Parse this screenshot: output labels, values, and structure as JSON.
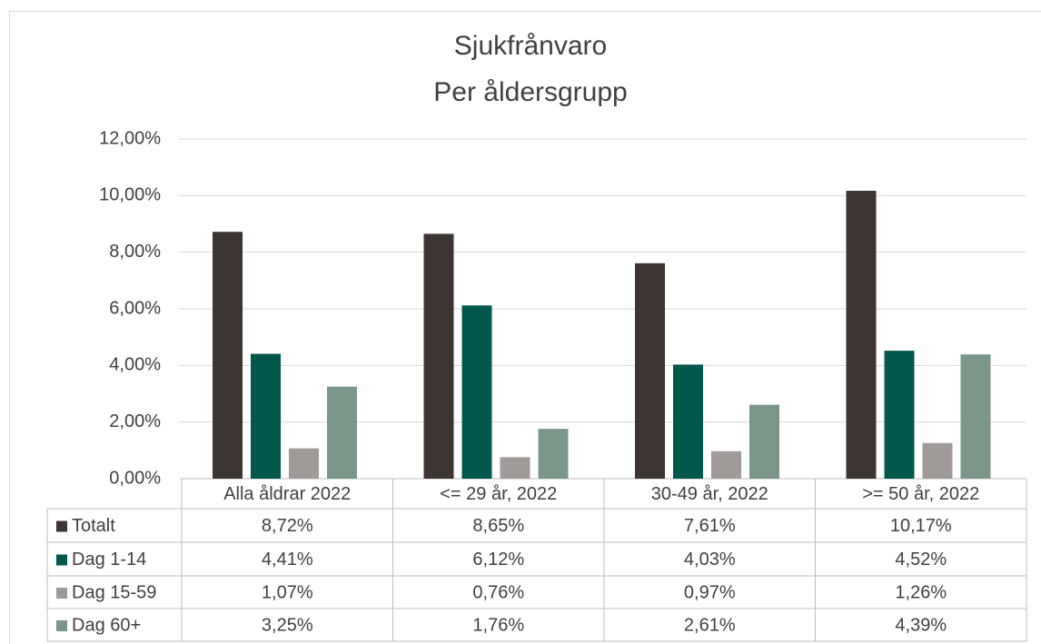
{
  "chart_data": {
    "type": "bar",
    "title": "Sjukfrånvaro",
    "subtitle": "Per åldersgrupp",
    "categories": [
      "Alla åldrar 2022",
      "<= 29 år, 2022",
      "30-49 år, 2022",
      ">= 50 år, 2022"
    ],
    "series": [
      {
        "name": "Totalt",
        "color": "#3d3531",
        "values": [
          8.72,
          8.65,
          7.61,
          10.17
        ],
        "value_labels": [
          "8,72%",
          "8,65%",
          "7,61%",
          "10,17%"
        ]
      },
      {
        "name": "Dag 1-14",
        "color": "#00574b",
        "values": [
          4.41,
          6.12,
          4.03,
          4.52
        ],
        "value_labels": [
          "4,41%",
          "6,12%",
          "4,03%",
          "4,52%"
        ]
      },
      {
        "name": "Dag 15-59",
        "color": "#a09a99",
        "values": [
          1.07,
          0.76,
          0.97,
          1.26
        ],
        "value_labels": [
          "1,07%",
          "0,76%",
          "0,97%",
          "1,26%"
        ]
      },
      {
        "name": "Dag 60+",
        "color": "#7a9689",
        "values": [
          3.25,
          1.76,
          2.61,
          4.39
        ],
        "value_labels": [
          "3,25%",
          "1,76%",
          "2,61%",
          "4,39%"
        ]
      }
    ],
    "ylim": [
      0,
      12
    ],
    "yticks": [
      {
        "value": 0,
        "label": "0,00%"
      },
      {
        "value": 2,
        "label": "2,00%"
      },
      {
        "value": 4,
        "label": "4,00%"
      },
      {
        "value": 6,
        "label": "6,00%"
      },
      {
        "value": 8,
        "label": "8,00%"
      },
      {
        "value": 10,
        "label": "10,00%"
      },
      {
        "value": 12,
        "label": "12,00%"
      }
    ],
    "grid": true
  }
}
